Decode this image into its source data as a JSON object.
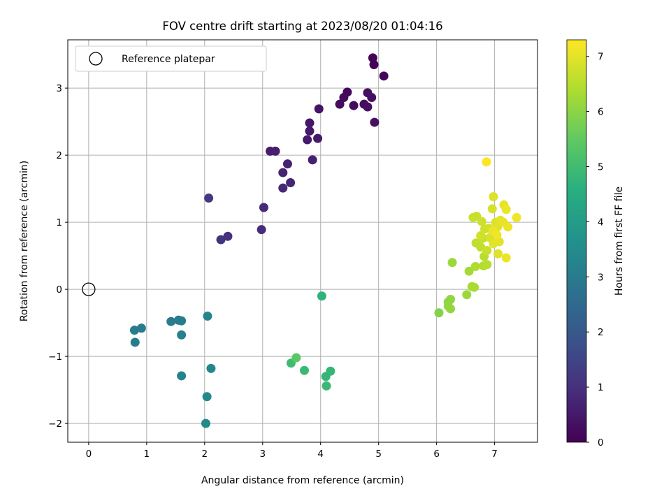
{
  "chart_data": {
    "type": "scatter",
    "title": "FOV centre drift starting at 2023/08/20 01:04:16",
    "xlabel": "Angular distance from reference (arcmin)",
    "ylabel": "Rotation from reference (arcmin)",
    "xlim": [
      -0.36,
      7.74
    ],
    "ylim": [
      -2.28,
      3.72
    ],
    "xticks": [
      0,
      1,
      2,
      3,
      4,
      5,
      6,
      7
    ],
    "yticks": [
      -2,
      -1,
      0,
      1,
      2,
      3
    ],
    "xtick_labels": [
      "0",
      "1",
      "2",
      "3",
      "4",
      "5",
      "6",
      "7"
    ],
    "ytick_labels": [
      "−2",
      "−1",
      "0",
      "1",
      "2",
      "3"
    ],
    "grid": true,
    "colormap": "viridis",
    "colorbar": {
      "label": "Hours from first FF file",
      "range": [
        0,
        7.3
      ],
      "ticks": [
        0,
        1,
        2,
        3,
        4,
        5,
        6,
        7
      ],
      "tick_labels": [
        "0",
        "1",
        "2",
        "3",
        "4",
        "5",
        "6",
        "7"
      ]
    },
    "legend": {
      "position": "top-left",
      "label": "Reference platepar"
    },
    "reference_point": {
      "x": 0,
      "y": 0
    },
    "points": [
      {
        "x": 4.9,
        "y": 3.45,
        "c": 0.05
      },
      {
        "x": 4.92,
        "y": 3.35,
        "c": 0.08
      },
      {
        "x": 5.09,
        "y": 3.18,
        "c": 0.1
      },
      {
        "x": 4.46,
        "y": 2.94,
        "c": 0.15
      },
      {
        "x": 4.4,
        "y": 2.86,
        "c": 0.18
      },
      {
        "x": 4.33,
        "y": 2.76,
        "c": 0.2
      },
      {
        "x": 4.57,
        "y": 2.74,
        "c": 0.22
      },
      {
        "x": 4.75,
        "y": 2.76,
        "c": 0.25
      },
      {
        "x": 4.81,
        "y": 2.72,
        "c": 0.27
      },
      {
        "x": 4.81,
        "y": 2.93,
        "c": 0.3
      },
      {
        "x": 4.88,
        "y": 2.86,
        "c": 0.32
      },
      {
        "x": 4.93,
        "y": 2.49,
        "c": 0.35
      },
      {
        "x": 3.97,
        "y": 2.69,
        "c": 0.4
      },
      {
        "x": 3.81,
        "y": 2.48,
        "c": 0.45
      },
      {
        "x": 3.81,
        "y": 2.36,
        "c": 0.48
      },
      {
        "x": 3.95,
        "y": 2.25,
        "c": 0.5
      },
      {
        "x": 3.77,
        "y": 2.23,
        "c": 0.52
      },
      {
        "x": 3.13,
        "y": 2.06,
        "c": 0.6
      },
      {
        "x": 3.22,
        "y": 2.06,
        "c": 0.62
      },
      {
        "x": 3.86,
        "y": 1.93,
        "c": 0.65
      },
      {
        "x": 3.43,
        "y": 1.87,
        "c": 0.7
      },
      {
        "x": 3.35,
        "y": 1.74,
        "c": 0.72
      },
      {
        "x": 3.48,
        "y": 1.59,
        "c": 0.75
      },
      {
        "x": 3.35,
        "y": 1.51,
        "c": 0.78
      },
      {
        "x": 3.02,
        "y": 1.22,
        "c": 0.85
      },
      {
        "x": 2.98,
        "y": 0.89,
        "c": 0.9
      },
      {
        "x": 2.4,
        "y": 0.79,
        "c": 1.0
      },
      {
        "x": 2.28,
        "y": 0.74,
        "c": 1.05
      },
      {
        "x": 2.07,
        "y": 1.36,
        "c": 1.2
      },
      {
        "x": 0.79,
        "y": -0.61,
        "c": 3.05
      },
      {
        "x": 0.91,
        "y": -0.58,
        "c": 3.0
      },
      {
        "x": 0.8,
        "y": -0.79,
        "c": 3.05
      },
      {
        "x": 1.42,
        "y": -0.48,
        "c": 3.0
      },
      {
        "x": 1.55,
        "y": -0.46,
        "c": 3.0
      },
      {
        "x": 1.6,
        "y": -0.47,
        "c": 3.05
      },
      {
        "x": 1.6,
        "y": -0.68,
        "c": 3.15
      },
      {
        "x": 1.6,
        "y": -1.29,
        "c": 3.25
      },
      {
        "x": 2.05,
        "y": -0.4,
        "c": 3.3
      },
      {
        "x": 2.11,
        "y": -1.18,
        "c": 3.35
      },
      {
        "x": 2.04,
        "y": -1.6,
        "c": 3.4
      },
      {
        "x": 2.02,
        "y": -2.0,
        "c": 3.45
      },
      {
        "x": 4.02,
        "y": -0.1,
        "c": 4.7
      },
      {
        "x": 3.49,
        "y": -1.1,
        "c": 5.0
      },
      {
        "x": 3.58,
        "y": -1.02,
        "c": 5.4
      },
      {
        "x": 3.72,
        "y": -1.21,
        "c": 4.9
      },
      {
        "x": 4.09,
        "y": -1.3,
        "c": 4.8
      },
      {
        "x": 4.1,
        "y": -1.44,
        "c": 4.9
      },
      {
        "x": 4.17,
        "y": -1.22,
        "c": 4.8
      },
      {
        "x": 6.04,
        "y": -0.35,
        "c": 5.9
      },
      {
        "x": 6.2,
        "y": -0.19,
        "c": 6.0
      },
      {
        "x": 6.24,
        "y": -0.15,
        "c": 6.05
      },
      {
        "x": 6.2,
        "y": -0.25,
        "c": 6.1
      },
      {
        "x": 6.24,
        "y": -0.29,
        "c": 6.1
      },
      {
        "x": 6.27,
        "y": 0.4,
        "c": 6.2
      },
      {
        "x": 6.52,
        "y": -0.08,
        "c": 6.2
      },
      {
        "x": 6.56,
        "y": 0.27,
        "c": 6.3
      },
      {
        "x": 6.61,
        "y": 0.04,
        "c": 6.3
      },
      {
        "x": 6.65,
        "y": 0.03,
        "c": 6.35
      },
      {
        "x": 6.67,
        "y": 0.34,
        "c": 6.4
      },
      {
        "x": 6.81,
        "y": 0.35,
        "c": 6.45
      },
      {
        "x": 6.87,
        "y": 0.37,
        "c": 6.5
      },
      {
        "x": 6.82,
        "y": 0.49,
        "c": 6.5
      },
      {
        "x": 6.68,
        "y": 0.69,
        "c": 6.6
      },
      {
        "x": 6.76,
        "y": 0.63,
        "c": 6.6
      },
      {
        "x": 6.8,
        "y": 0.76,
        "c": 6.65
      },
      {
        "x": 6.87,
        "y": 0.58,
        "c": 6.7
      },
      {
        "x": 6.63,
        "y": 1.07,
        "c": 6.7
      },
      {
        "x": 6.69,
        "y": 1.09,
        "c": 6.7
      },
      {
        "x": 6.78,
        "y": 1.01,
        "c": 6.75
      },
      {
        "x": 6.83,
        "y": 0.9,
        "c": 6.75
      },
      {
        "x": 6.76,
        "y": 0.8,
        "c": 6.8
      },
      {
        "x": 6.9,
        "y": 0.91,
        "c": 6.8
      },
      {
        "x": 6.92,
        "y": 0.77,
        "c": 6.85
      },
      {
        "x": 6.96,
        "y": 1.2,
        "c": 6.85
      },
      {
        "x": 6.98,
        "y": 1.38,
        "c": 6.9
      },
      {
        "x": 7.02,
        "y": 1.0,
        "c": 6.9
      },
      {
        "x": 7.05,
        "y": 0.93,
        "c": 6.95
      },
      {
        "x": 7.06,
        "y": 0.53,
        "c": 6.95
      },
      {
        "x": 7.08,
        "y": 0.71,
        "c": 7.0
      },
      {
        "x": 6.98,
        "y": 0.68,
        "c": 7.0
      },
      {
        "x": 7.1,
        "y": 1.03,
        "c": 7.0
      },
      {
        "x": 7.15,
        "y": 1.0,
        "c": 7.05
      },
      {
        "x": 7.16,
        "y": 1.26,
        "c": 7.05
      },
      {
        "x": 7.2,
        "y": 1.19,
        "c": 7.1
      },
      {
        "x": 7.2,
        "y": 0.47,
        "c": 7.1
      },
      {
        "x": 7.23,
        "y": 0.93,
        "c": 7.1
      },
      {
        "x": 7.38,
        "y": 1.07,
        "c": 7.15
      },
      {
        "x": 6.97,
        "y": 0.87,
        "c": 7.1
      },
      {
        "x": 7.04,
        "y": 0.81,
        "c": 7.15
      },
      {
        "x": 6.86,
        "y": 1.9,
        "c": 7.25
      }
    ]
  }
}
